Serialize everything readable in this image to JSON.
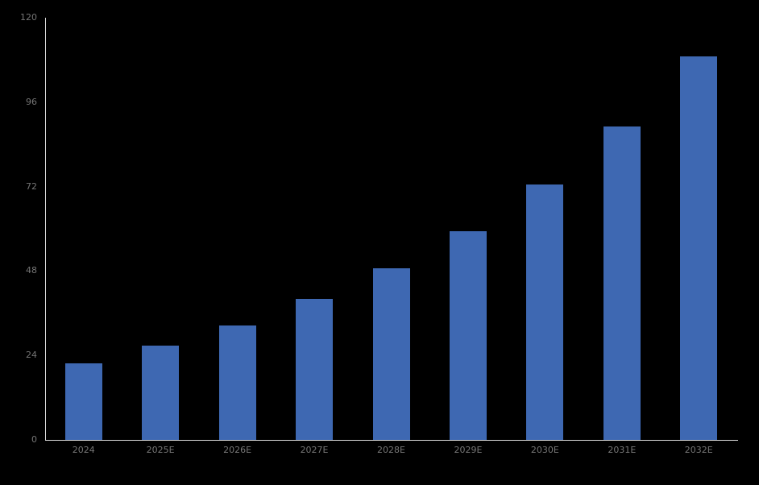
{
  "chart_data": {
    "type": "bar",
    "title": "",
    "xlabel": "",
    "ylabel": "",
    "categories": [
      "2024",
      "2025E",
      "2026E",
      "2027E",
      "2028E",
      "2029E",
      "2030E",
      "2031E",
      "2032E"
    ],
    "values": [
      21.7,
      26.7,
      32.5,
      40.0,
      48.7,
      59.3,
      72.5,
      89.0,
      108.9
    ],
    "ylim": [
      0,
      120
    ],
    "yticks": [
      0,
      24,
      48,
      72,
      96,
      120
    ],
    "grid": false,
    "legend_position": "none",
    "bar_color": "#3E68B2",
    "axis_color": "#DCDCDC",
    "tick_label_color": "#767676",
    "background_color": "#000000"
  }
}
